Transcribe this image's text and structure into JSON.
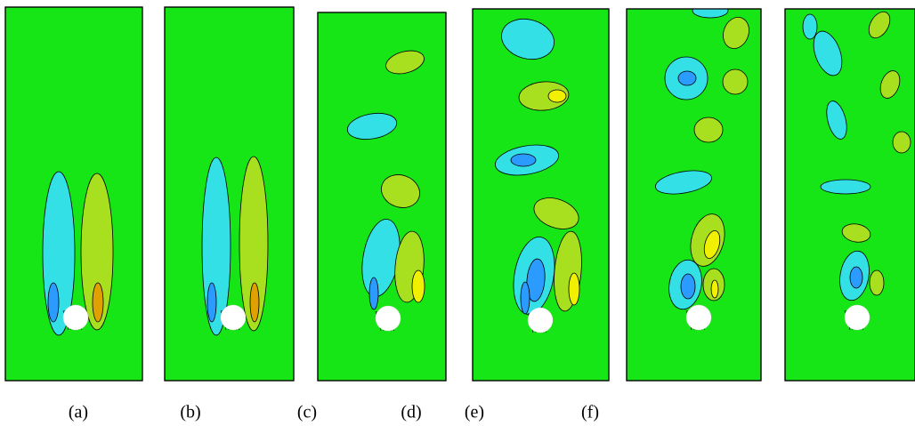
{
  "labels": [
    "(a)",
    "(b)",
    "(c)",
    "(d)",
    "(e)",
    "(f)"
  ]
}
